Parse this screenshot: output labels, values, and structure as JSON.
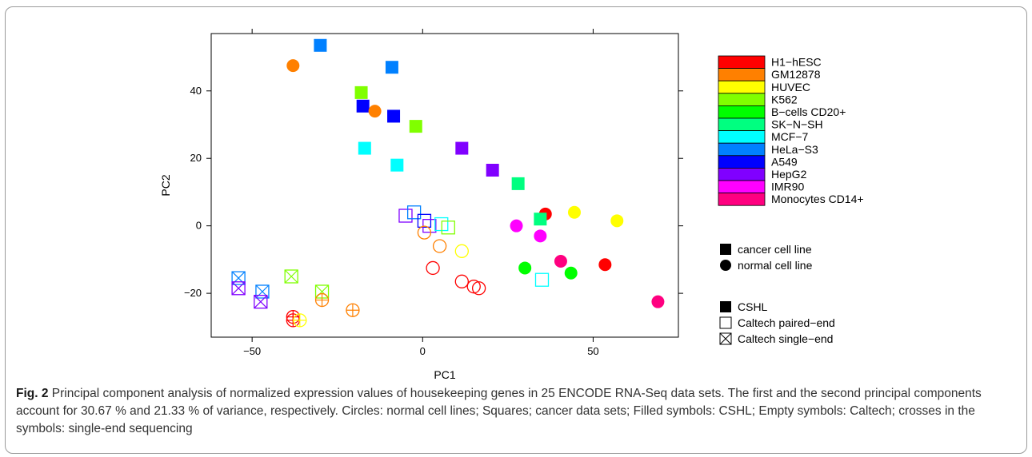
{
  "figure": {
    "label": "Fig. 2",
    "caption": "Principal component analysis of normalized expression values of housekeeping genes in 25 ENCODE RNA-Seq data sets. The first and the second principal components account for 30.67 % and 21.33 % of variance, respectively. Circles: normal cell lines; Squares; cancer data sets; Filled symbols: CSHL; Empty symbols: Caltech; crosses in the symbols: single-end sequencing"
  },
  "chart_data": {
    "type": "scatter",
    "xlabel": "PC1",
    "ylabel": "PC2",
    "xlim": [
      -62,
      75
    ],
    "ylim": [
      -33,
      57
    ],
    "xticks": [
      -50,
      0,
      50
    ],
    "yticks": [
      -20,
      0,
      20,
      40
    ],
    "grid": false,
    "legend_position": "right",
    "cell_lines": [
      {
        "name": "H1−hESC",
        "color": "#ff0000"
      },
      {
        "name": "GM12878",
        "color": "#ff8000"
      },
      {
        "name": "HUVEC",
        "color": "#ffff00"
      },
      {
        "name": "K562",
        "color": "#80ff00"
      },
      {
        "name": "B−cells CD20+",
        "color": "#00ff00"
      },
      {
        "name": "SK−N−SH",
        "color": "#00ff80"
      },
      {
        "name": "MCF−7",
        "color": "#00ffff"
      },
      {
        "name": "HeLa−S3",
        "color": "#0080ff"
      },
      {
        "name": "A549",
        "color": "#0000ff"
      },
      {
        "name": "HepG2",
        "color": "#8000ff"
      },
      {
        "name": "IMR90",
        "color": "#ff00ff"
      },
      {
        "name": "Monocytes CD14+",
        "color": "#ff0080"
      }
    ],
    "shape_legend": [
      {
        "label": "cancer cell line",
        "shape": "square"
      },
      {
        "label": "normal cell line",
        "shape": "circle"
      }
    ],
    "fill_legend": [
      {
        "label": "CSHL",
        "style": "filled"
      },
      {
        "label": "Caltech paired−end",
        "style": "empty"
      },
      {
        "label": "Caltech single−end",
        "style": "crossed"
      }
    ],
    "points": [
      {
        "x": -30,
        "y": 53.5,
        "shape": "square",
        "style": "filled",
        "line": 7
      },
      {
        "x": -38,
        "y": 47.5,
        "shape": "circle",
        "style": "filled",
        "line": 1
      },
      {
        "x": -9,
        "y": 47,
        "shape": "square",
        "style": "filled",
        "line": 7
      },
      {
        "x": -18,
        "y": 39.5,
        "shape": "square",
        "style": "filled",
        "line": 3
      },
      {
        "x": -17.5,
        "y": 35.5,
        "shape": "square",
        "style": "filled",
        "line": 8
      },
      {
        "x": -14,
        "y": 34,
        "shape": "circle",
        "style": "filled",
        "line": 1
      },
      {
        "x": -8.5,
        "y": 32.5,
        "shape": "square",
        "style": "filled",
        "line": 8
      },
      {
        "x": -2,
        "y": 29.5,
        "shape": "square",
        "style": "filled",
        "line": 3
      },
      {
        "x": -17,
        "y": 23,
        "shape": "square",
        "style": "filled",
        "line": 6
      },
      {
        "x": 11.5,
        "y": 23,
        "shape": "square",
        "style": "filled",
        "line": 9
      },
      {
        "x": -7.5,
        "y": 18,
        "shape": "square",
        "style": "filled",
        "line": 6
      },
      {
        "x": 20.5,
        "y": 16.5,
        "shape": "square",
        "style": "filled",
        "line": 9
      },
      {
        "x": 28,
        "y": 12.5,
        "shape": "square",
        "style": "filled",
        "line": 5
      },
      {
        "x": 36,
        "y": 3.5,
        "shape": "circle",
        "style": "filled",
        "line": 0
      },
      {
        "x": 44.5,
        "y": 4,
        "shape": "circle",
        "style": "filled",
        "line": 2
      },
      {
        "x": 57,
        "y": 1.5,
        "shape": "circle",
        "style": "filled",
        "line": 2
      },
      {
        "x": 34.5,
        "y": 2,
        "shape": "square",
        "style": "filled",
        "line": 5
      },
      {
        "x": 27.5,
        "y": 0,
        "shape": "circle",
        "style": "filled",
        "line": 10
      },
      {
        "x": 34.5,
        "y": -3,
        "shape": "circle",
        "style": "filled",
        "line": 10
      },
      {
        "x": 30,
        "y": -12.5,
        "shape": "circle",
        "style": "filled",
        "line": 4
      },
      {
        "x": 40.5,
        "y": -10.5,
        "shape": "circle",
        "style": "filled",
        "line": 11
      },
      {
        "x": 53.5,
        "y": -11.5,
        "shape": "circle",
        "style": "filled",
        "line": 0
      },
      {
        "x": 43.5,
        "y": -14,
        "shape": "circle",
        "style": "filled",
        "line": 4
      },
      {
        "x": 69,
        "y": -22.5,
        "shape": "circle",
        "style": "filled",
        "line": 11
      },
      {
        "x": -5,
        "y": 3,
        "shape": "square",
        "style": "empty",
        "line": 9
      },
      {
        "x": -2.5,
        "y": 4,
        "shape": "square",
        "style": "empty",
        "line": 7
      },
      {
        "x": 0.5,
        "y": 1.5,
        "shape": "square",
        "style": "empty",
        "line": 8
      },
      {
        "x": 2,
        "y": 0,
        "shape": "square",
        "style": "empty",
        "line": 9
      },
      {
        "x": 5.5,
        "y": 0.5,
        "shape": "square",
        "style": "empty",
        "line": 6
      },
      {
        "x": 7.5,
        "y": -0.5,
        "shape": "square",
        "style": "empty",
        "line": 3
      },
      {
        "x": 0.5,
        "y": -2,
        "shape": "circle",
        "style": "empty",
        "line": 1
      },
      {
        "x": 5,
        "y": -6,
        "shape": "circle",
        "style": "empty",
        "line": 1
      },
      {
        "x": 11.5,
        "y": -7.5,
        "shape": "circle",
        "style": "empty",
        "line": 2
      },
      {
        "x": 3,
        "y": -12.5,
        "shape": "circle",
        "style": "empty",
        "line": 0
      },
      {
        "x": 11.5,
        "y": -16.5,
        "shape": "circle",
        "style": "empty",
        "line": 0
      },
      {
        "x": 15,
        "y": -18,
        "shape": "circle",
        "style": "empty",
        "line": 0
      },
      {
        "x": 16.5,
        "y": -18.5,
        "shape": "circle",
        "style": "empty",
        "line": 0
      },
      {
        "x": 35,
        "y": -16,
        "shape": "square",
        "style": "empty",
        "line": 6
      },
      {
        "x": -54,
        "y": -15.5,
        "shape": "square",
        "style": "crossed",
        "line": 7
      },
      {
        "x": -54,
        "y": -18.5,
        "shape": "square",
        "style": "crossed",
        "line": 9
      },
      {
        "x": -47,
        "y": -19.5,
        "shape": "square",
        "style": "crossed",
        "line": 7
      },
      {
        "x": -47.5,
        "y": -22.5,
        "shape": "square",
        "style": "crossed",
        "line": 9
      },
      {
        "x": -38.5,
        "y": -15,
        "shape": "square",
        "style": "crossed",
        "line": 3
      },
      {
        "x": -29.5,
        "y": -19.5,
        "shape": "square",
        "style": "crossed",
        "line": 3
      },
      {
        "x": -29.5,
        "y": -22,
        "shape": "circle",
        "style": "crossed",
        "line": 1
      },
      {
        "x": -20.5,
        "y": -25,
        "shape": "circle",
        "style": "crossed",
        "line": 1
      },
      {
        "x": -38,
        "y": -27,
        "shape": "circle",
        "style": "crossed",
        "line": 0
      },
      {
        "x": -38,
        "y": -28,
        "shape": "circle",
        "style": "crossed",
        "line": 0
      },
      {
        "x": -36,
        "y": -28,
        "shape": "circle",
        "style": "crossed",
        "line": 2
      }
    ]
  }
}
